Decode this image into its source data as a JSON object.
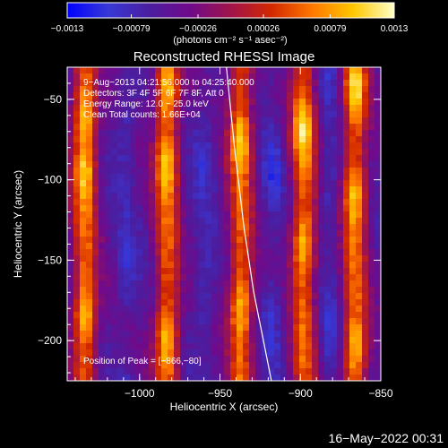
{
  "chart_data": {
    "type": "heatmap",
    "title": "Reconstructed RHESSI Image",
    "xlabel": "Heliocentric X (arcsec)",
    "ylabel": "Heliocentric Y (arcsec)",
    "xlim": [
      -1045,
      -850
    ],
    "ylim": [
      -225,
      -30
    ],
    "xticks": [
      -1000,
      -950,
      -900,
      -850
    ],
    "yticks": [
      -50,
      -100,
      -150,
      -200
    ],
    "xtick_labels": [
      "−1000",
      "−950",
      "−900",
      "−850"
    ],
    "ytick_labels": [
      "−50",
      "−100",
      "−150",
      "−200"
    ],
    "colorbar": {
      "range": [
        -0.0013,
        0.0013
      ],
      "ticks": [
        -0.0013,
        -0.00079,
        -0.00026,
        0.00026,
        0.00079,
        0.0013
      ],
      "tick_labels": [
        "−0.0013",
        "−0.00079",
        "−0.00026",
        "0.00026",
        "0.00079",
        "0.0013"
      ],
      "unit_label": "(photons cm⁻² s⁻¹ asec⁻²)",
      "colormap": [
        "#0000ff",
        "#3838d6",
        "#4a1ea0",
        "#700a8a",
        "#a0144a",
        "#d22800",
        "#ff7800",
        "#ffc800",
        "#ffffc8"
      ]
    },
    "bands": [
      {
        "x": -1034,
        "y_from": -225,
        "y_to": -30,
        "peaks": [
          -60,
          -95,
          -185
        ]
      },
      {
        "x": -983,
        "y_from": -225,
        "y_to": -30,
        "peaks": [
          -45,
          -90,
          -200
        ]
      },
      {
        "x": -937,
        "y_from": -225,
        "y_to": -30,
        "peaks": [
          -75,
          -180
        ]
      },
      {
        "x": -898,
        "y_from": -225,
        "y_to": -30,
        "peaks": [
          -70,
          -140
        ]
      },
      {
        "x": -866,
        "y_from": -225,
        "y_to": -30,
        "peaks": [
          -45,
          -110,
          -205
        ]
      }
    ],
    "limb_curve": {
      "x": [
        -946,
        -941,
        -935,
        -929,
        -923,
        -918
      ],
      "y": [
        -30,
        -80,
        -130,
        -170,
        -200,
        -225
      ]
    },
    "annotations": [
      "9−Aug−2013 04:21:56.000 to 04:25:40.000",
      "Detectors: 3F 4F 5F 6F 7F 8F, Att 0",
      "Energy Range: 12.0 − 25.0 keV",
      "Clean    Total counts: 1.66E+04"
    ],
    "position_label": "Position of Peak = [−866,−80]",
    "timestamp": "16−May−2022 00:31"
  }
}
